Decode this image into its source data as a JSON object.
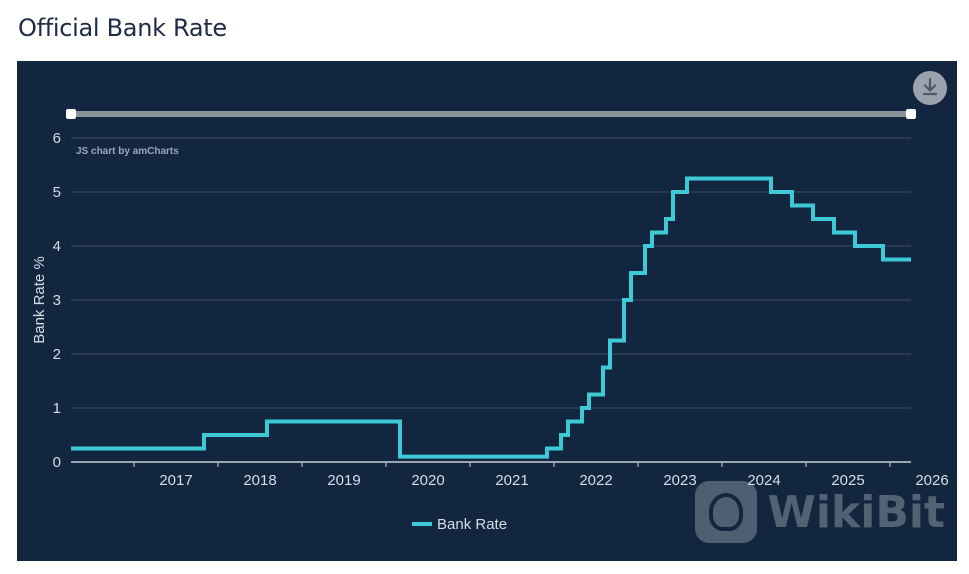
{
  "page": {
    "title": "Official Bank Rate"
  },
  "toolbar": {
    "download_icon": "download-icon"
  },
  "credit": "JS chart by amCharts",
  "watermark": {
    "text": "WikiBit"
  },
  "colors": {
    "panel": "#13263f",
    "line": "#3ec9d6",
    "grid": "#3b4d66",
    "text": "#d6dde6",
    "scrollbar": "#8a9199"
  },
  "chart_data": {
    "type": "line",
    "step": true,
    "ylabel": "Bank Rate %",
    "ylim": [
      0,
      6
    ],
    "yticks": [
      "0",
      "1",
      "2",
      "3",
      "4",
      "5",
      "6"
    ],
    "xlim": [
      2016.25,
      2026.25
    ],
    "xticks": [
      "2017",
      "2018",
      "2019",
      "2020",
      "2021",
      "2022",
      "2023",
      "2024",
      "2025",
      "2026"
    ],
    "grid": true,
    "legend_position": "bottom",
    "series": [
      {
        "name": "Bank Rate",
        "color": "#3ec9d6",
        "points": [
          [
            "2016-03",
            0.25
          ],
          [
            "2017-11",
            0.5
          ],
          [
            "2018-08",
            0.75
          ],
          [
            "2020-03",
            0.1
          ],
          [
            "2021-12",
            0.25
          ],
          [
            "2022-02",
            0.5
          ],
          [
            "2022-03",
            0.75
          ],
          [
            "2022-05",
            1.0
          ],
          [
            "2022-06",
            1.25
          ],
          [
            "2022-08",
            1.75
          ],
          [
            "2022-09",
            2.25
          ],
          [
            "2022-11",
            3.0
          ],
          [
            "2022-12",
            3.5
          ],
          [
            "2023-02",
            4.0
          ],
          [
            "2023-03",
            4.25
          ],
          [
            "2023-05",
            4.5
          ],
          [
            "2023-06",
            5.0
          ],
          [
            "2023-08",
            5.25
          ],
          [
            "2024-08",
            5.0
          ],
          [
            "2024-11",
            4.75
          ],
          [
            "2025-02",
            4.5
          ],
          [
            "2025-05",
            4.25
          ],
          [
            "2025-08",
            4.0
          ],
          [
            "2025-12",
            3.75
          ],
          [
            "2026-03",
            3.75
          ]
        ]
      }
    ]
  }
}
